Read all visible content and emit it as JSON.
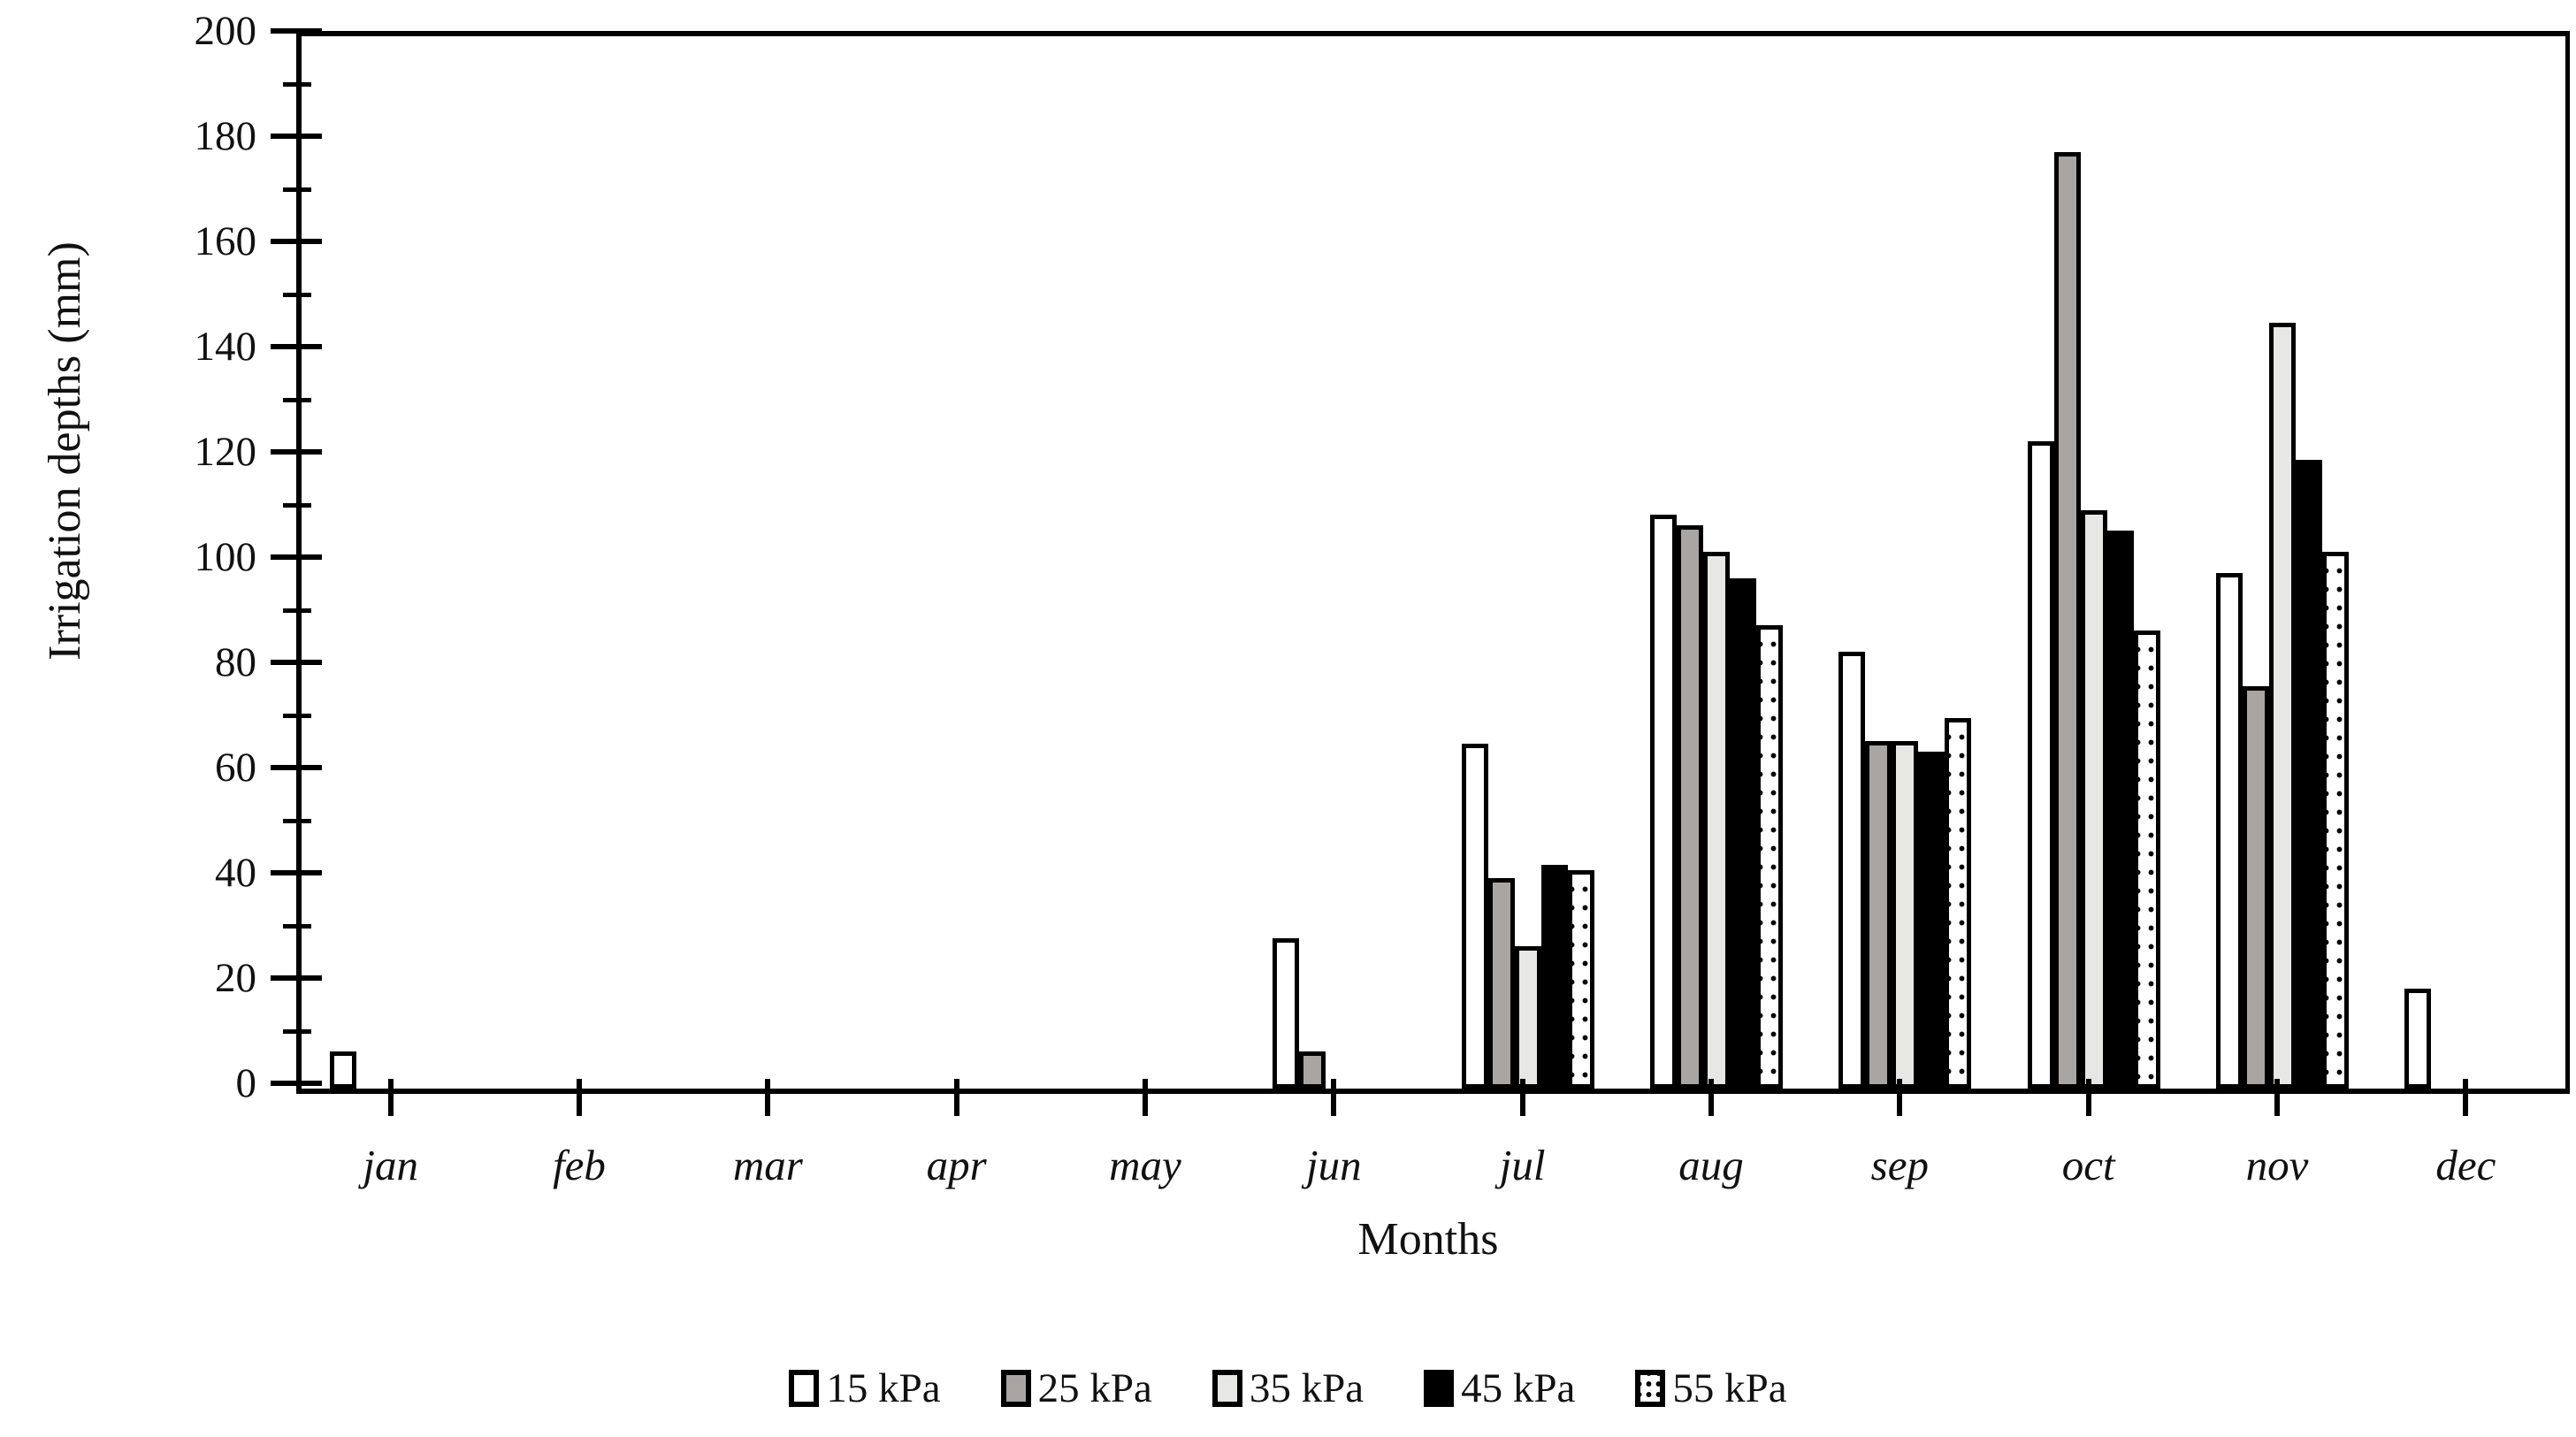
{
  "figure": {
    "y_axis_title": "Irrigation depths (mm)",
    "x_axis_title": "Months"
  },
  "colors": {
    "axis": "#000000",
    "bar_border": "#000000",
    "bar_white": "#ffffff",
    "bar_gray": "#a8a5a3",
    "bar_lightgray": "#e7e7e5",
    "bar_black": "#000000",
    "bar_dotted_base": "#ffffff"
  },
  "chart_data": {
    "type": "bar",
    "title": "",
    "xlabel": "Months",
    "ylabel": "Irrigation depths (mm)",
    "ylim": [
      0,
      200
    ],
    "ytick_major_step": 20,
    "ytick_minor_step": 10,
    "yticks": [
      200,
      180,
      160,
      140,
      120,
      100,
      80,
      60,
      40,
      20,
      0
    ],
    "grid": false,
    "legend_position": "bottom",
    "categories": [
      "jan",
      "feb",
      "mar",
      "apr",
      "may",
      "jun",
      "jul",
      "aug",
      "sep",
      "oct",
      "nov",
      "dec"
    ],
    "series": [
      {
        "name": "15 kPa",
        "fill": "white",
        "values": [
          7,
          0,
          0,
          0,
          0,
          28.5,
          65.5,
          109,
          83,
          123,
          98,
          19
        ]
      },
      {
        "name": "25 kPa",
        "fill": "gray",
        "values": [
          0,
          0,
          0,
          0,
          0,
          7,
          40,
          107,
          66,
          178,
          76.5,
          0
        ]
      },
      {
        "name": "35 kPa",
        "fill": "lightgray",
        "values": [
          0,
          0,
          0,
          0,
          0,
          0,
          27,
          102,
          66,
          110,
          145.5,
          0
        ]
      },
      {
        "name": "45 kPa",
        "fill": "black",
        "values": [
          0,
          0,
          0,
          0,
          0,
          0,
          42.5,
          97,
          64,
          106,
          119.5,
          0
        ]
      },
      {
        "name": "55 kPa",
        "fill": "dotted",
        "values": [
          0,
          0,
          0,
          0,
          0,
          0,
          41.5,
          88,
          70.5,
          87,
          102,
          0
        ]
      }
    ]
  }
}
